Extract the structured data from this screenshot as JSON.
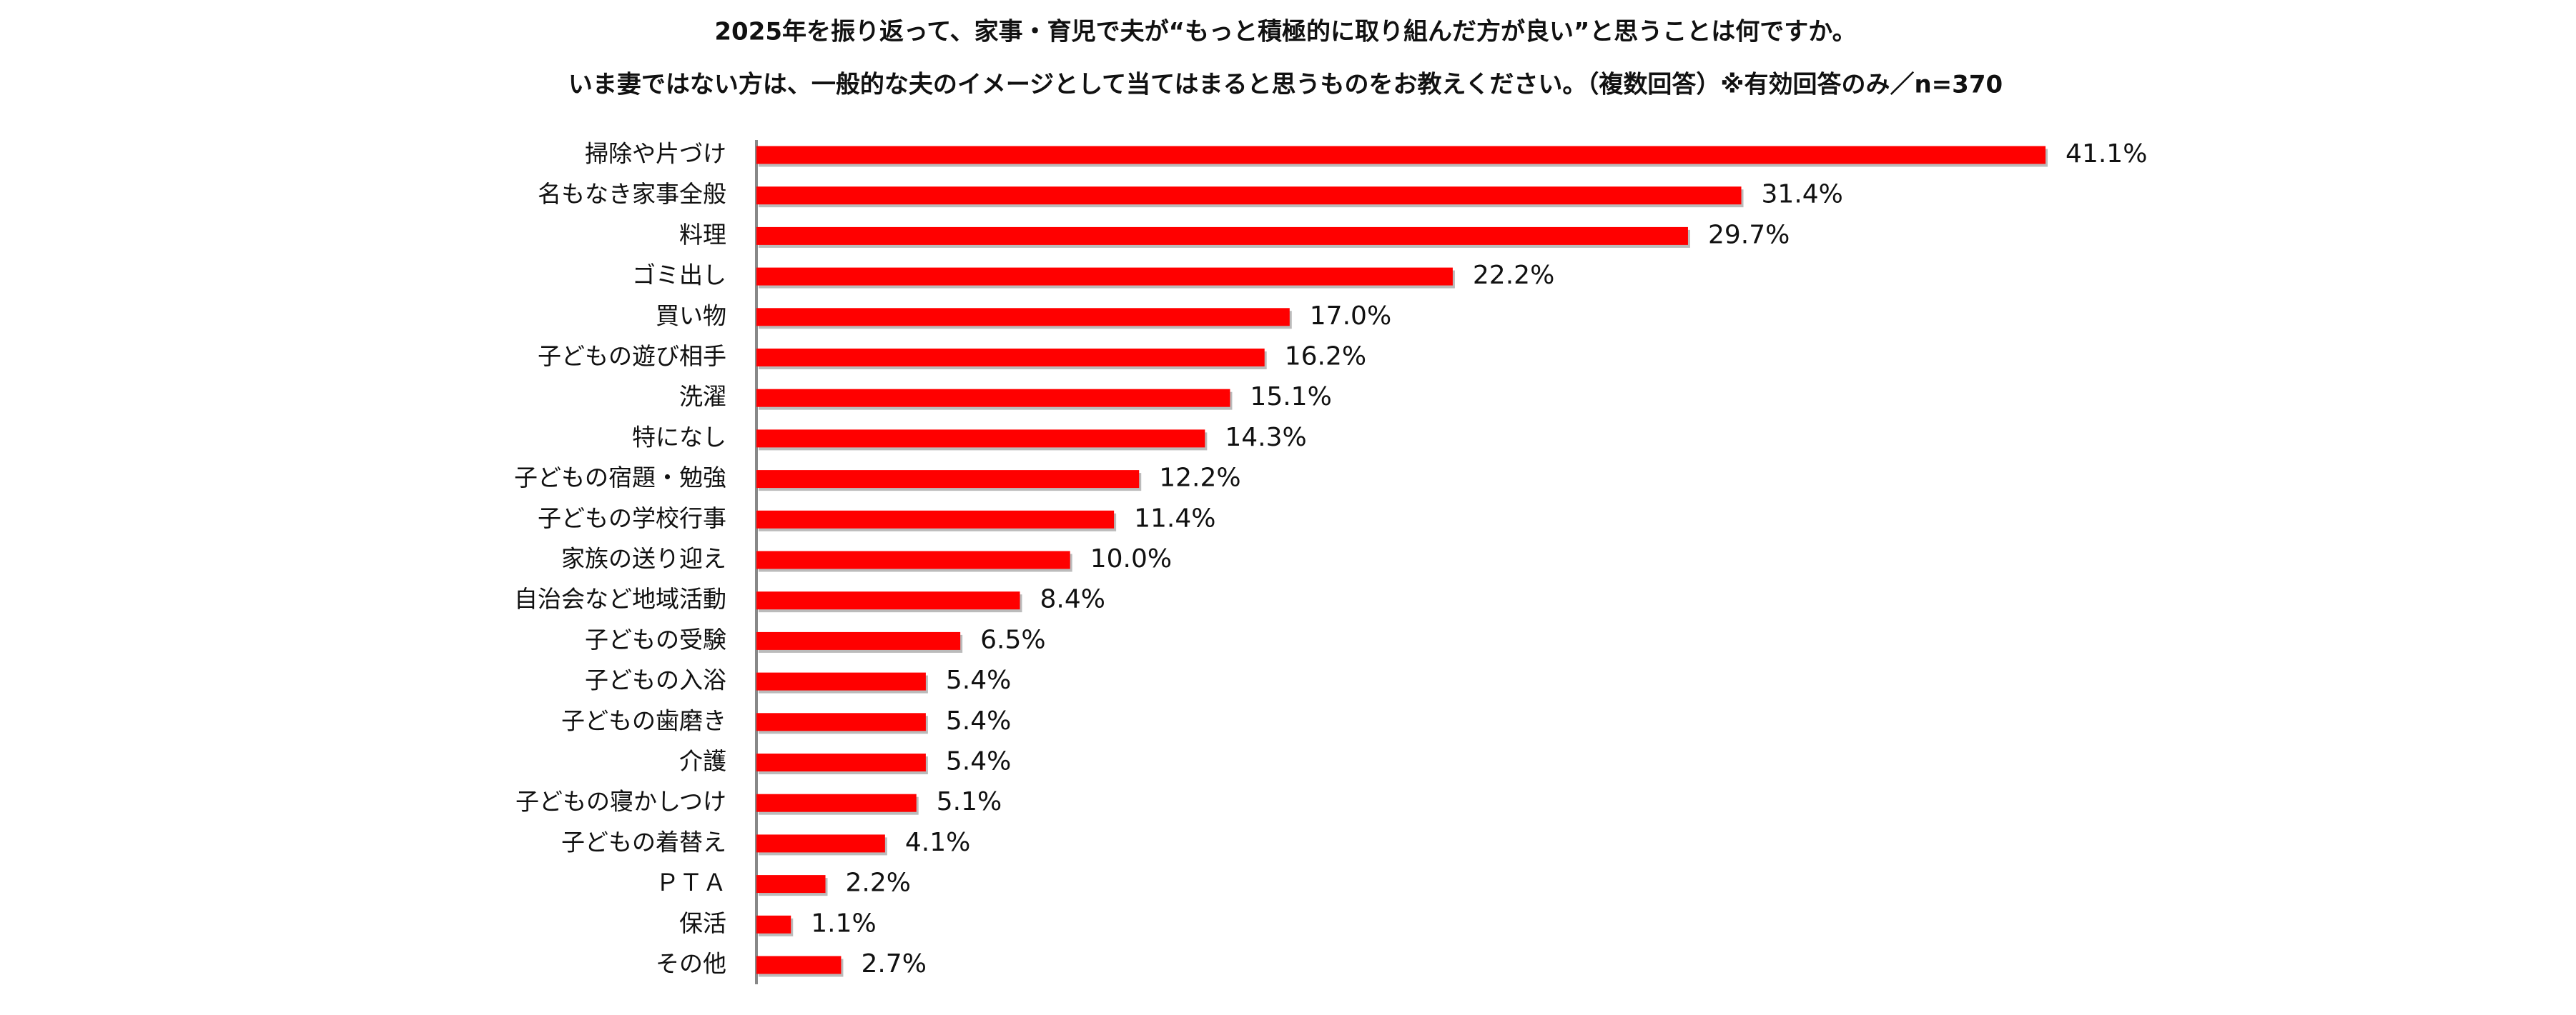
{
  "chart_data": {
    "type": "bar",
    "orientation": "horizontal",
    "title": "2025年を振り返って、家事・育児で夫が“もっと積極的に取り組んだ方が良い”と思うことは何ですか。",
    "subtitle": "いま妻ではない方は、一般的な夫のイメージとして当てはまると思うものをお教えください。（複数回答）※有効回答のみ／n=370",
    "categories": [
      "掃除や片づけ",
      "名もなき家事全般",
      "料理",
      "ゴミ出し",
      "買い物",
      "子どもの遊び相手",
      "洗濯",
      "特になし",
      "子どもの宿題・勉強",
      "子どもの学校行事",
      "家族の送り迎え",
      "自治会など地域活動",
      "子どもの受験",
      "子どもの入浴",
      "子どもの歯磨き",
      "介護",
      "子どもの寝かしつけ",
      "子どもの着替え",
      "ＰＴＡ",
      "保活",
      "その他"
    ],
    "values": [
      41.1,
      31.4,
      29.7,
      22.2,
      17.0,
      16.2,
      15.1,
      14.3,
      12.2,
      11.4,
      10.0,
      8.4,
      6.5,
      5.4,
      5.4,
      5.4,
      5.1,
      4.1,
      2.2,
      1.1,
      2.7
    ],
    "value_labels": [
      "41.1%",
      "31.4%",
      "29.7%",
      "22.2%",
      "17.0%",
      "16.2%",
      "15.1%",
      "14.3%",
      "12.2%",
      "11.4%",
      "10.0%",
      "8.4%",
      "6.5%",
      "5.4%",
      "5.4%",
      "5.4%",
      "5.1%",
      "4.1%",
      "2.2%",
      "1.1%",
      "2.7%"
    ],
    "color": "#ff0000"
  }
}
